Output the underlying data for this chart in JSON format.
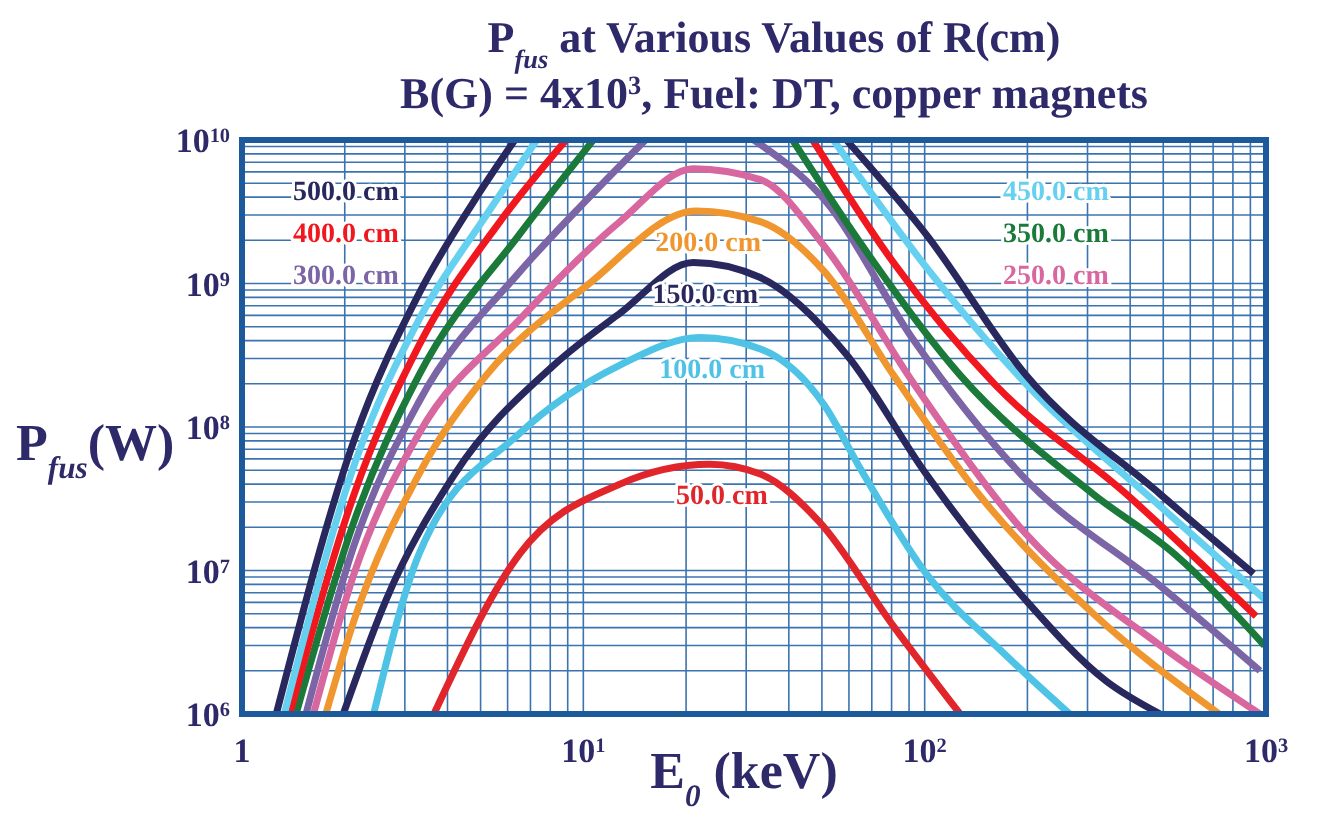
{
  "chart_data": {
    "type": "line",
    "title": "P$_{fus}$ at Various Values of R(cm)",
    "subtitle": "B(G) = 4x10$^{3}$, Fuel: DT, copper magnets",
    "xlabel": "E$_{0}$ (keV)",
    "ylabel": "P$_{fus}$(W)",
    "log": "xy",
    "grid": true,
    "marker": "none",
    "line_style": "solid",
    "xlim": [
      1,
      1000
    ],
    "ylim": [
      1000000,
      10000000000
    ],
    "xticks": [
      1,
      {
        "value": 10,
        "label": "10$^{1}$"
      },
      {
        "value": 100,
        "label": "10$^{2}$"
      },
      {
        "value": 1000,
        "label": "10$^{3}$"
      }
    ],
    "yticks": [
      {
        "value": 1000000,
        "label": "10$^{6}$"
      },
      {
        "value": 10000000,
        "label": "10$^{7}$"
      },
      {
        "value": 100000000,
        "label": "10$^{8}$"
      },
      {
        "value": 1000000000,
        "label": "10$^{9}$"
      },
      {
        "value": 10000000000,
        "label": "10$^{10}$"
      }
    ],
    "series": [
      {
        "name": "50.0 cm",
        "color": "#e0262b",
        "x": [
          3.65,
          6.5,
          12.8,
          23.5,
          33,
          49,
          81,
          127
        ],
        "values": [
          1000000,
          13000000,
          40000000,
          55000000,
          47000000,
          22000000,
          4100000,
          1000000
        ]
      },
      {
        "name": "100.0 cm",
        "color": "#4ec3e6",
        "x": [
          2.43,
          3.3,
          6.5,
          12.8,
          22,
          33,
          51,
          64,
          101,
          172,
          266
        ],
        "values": [
          1000000,
          13000000,
          90000000,
          270000000,
          420000000,
          350000000,
          140000000,
          54000000,
          9500000,
          2600000,
          1000000
        ]
      },
      {
        "name": "150.0 cm",
        "color": "#28285e",
        "x": [
          1.98,
          2.64,
          4.2,
          8.2,
          12.8,
          21,
          33,
          59,
          101,
          198,
          340,
          490
        ],
        "values": [
          1000000,
          6200000,
          47000000,
          270000000,
          620000000,
          1400000000,
          1100000000,
          320000000,
          47000000,
          6200000,
          1700000,
          1000000
        ]
      },
      {
        "name": "200.0 cm",
        "color": "#f0962e",
        "x": [
          1.76,
          2.13,
          3.3,
          5.2,
          10.2,
          21.4,
          33,
          51,
          81,
          144,
          312,
          730
        ],
        "values": [
          1000000,
          4500000,
          47000000,
          230000000,
          960000000,
          3200000000,
          2700000000,
          1200000000,
          230000000,
          34000000,
          5000000,
          1000000
        ]
      },
      {
        "name": "250.0 cm",
        "color": "#d8679f",
        "x": [
          1.62,
          2.13,
          3.3,
          6.5,
          12.8,
          21,
          33,
          51,
          93,
          198,
          490,
          960
        ],
        "values": [
          1000000,
          9500000,
          90000000,
          560000000,
          2700000000,
          6300000000,
          5300000000,
          1800000000,
          200000000,
          18000000,
          3000000,
          1000000
        ]
      },
      {
        "name": "300.0 cm",
        "color": "#7b65a6",
        "x": [
          1.54,
          2.13,
          3.3,
          6.5,
          10.2,
          15.2,
          22,
          31.6,
          51,
          93,
          198,
          490,
          960
        ],
        "values": [
          1000000,
          15000000,
          150000000,
          1200000000,
          3800000000,
          10000000000,
          null,
          10000000000,
          3800000000,
          400000000,
          43000000,
          7800000,
          2000000
        ]
      },
      {
        "name": "350.0 cm",
        "color": "#1b7a3a",
        "x": [
          1.44,
          2.13,
          3.3,
          6.5,
          10.7,
          22,
          41,
          64,
          127,
          312,
          540,
          990
        ],
        "values": [
          1000000,
          22000000,
          230000000,
          2200000000,
          10000000000,
          null,
          10000000000,
          2000000000,
          230000000,
          34000000,
          13000000,
          3000000
        ]
      },
      {
        "name": "400.0 cm",
        "color": "#f0181e",
        "x": [
          1.38,
          2.13,
          3.3,
          5.7,
          8.9,
          22,
          47,
          81,
          160,
          390,
          935
        ],
        "values": [
          1000000,
          34000000,
          370000000,
          2700000000,
          10000000000,
          null,
          10000000000,
          1400000000,
          200000000,
          34000000,
          4800000
        ]
      },
      {
        "name": "450.0 cm",
        "color": "#66d0f0",
        "x": [
          1.33,
          2.13,
          3.3,
          5.2,
          7.3,
          22,
          54,
          101,
          198,
          490,
          1000
        ],
        "values": [
          1000000,
          54000000,
          560000000,
          3000000000,
          10000000000,
          null,
          10000000000,
          1300000000,
          200000000,
          28000000,
          6200000
        ]
      },
      {
        "name": "500.0 cm",
        "color": "#28285e",
        "x": [
          1.26,
          2.13,
          3.3,
          4.8,
          6.3,
          22,
          59,
          101,
          198,
          490,
          920
        ],
        "values": [
          1000000,
          81000000,
          850000000,
          3800000000,
          10000000000,
          null,
          10000000000,
          2200000000,
          230000000,
          34000000,
          9500000
        ]
      }
    ]
  }
}
